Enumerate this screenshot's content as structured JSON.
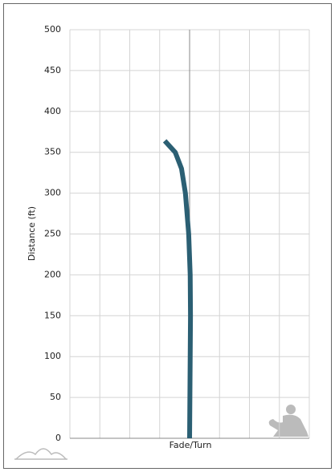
{
  "chart_data": {
    "type": "line",
    "y_label": "Distance (ft)",
    "x_label": "Fade/Turn",
    "series": [
      {
        "color": "#2b5f73",
        "x": [
          0,
          0.2,
          0.3,
          0.2,
          -0.3,
          -1.4,
          -2.7,
          -4.8,
          -8.3
        ],
        "values": [
          0,
          100,
          150,
          200,
          250,
          300,
          330,
          350,
          364
        ]
      }
    ],
    "xlim": [
      -40,
      40
    ],
    "xticks": [
      -40,
      -30,
      -20,
      -10,
      0,
      10,
      20,
      30,
      40
    ],
    "ylim": [
      0,
      500
    ],
    "yticks": [
      0,
      50,
      100,
      150,
      200,
      250,
      300,
      350,
      400,
      450,
      500
    ],
    "grid": true
  }
}
